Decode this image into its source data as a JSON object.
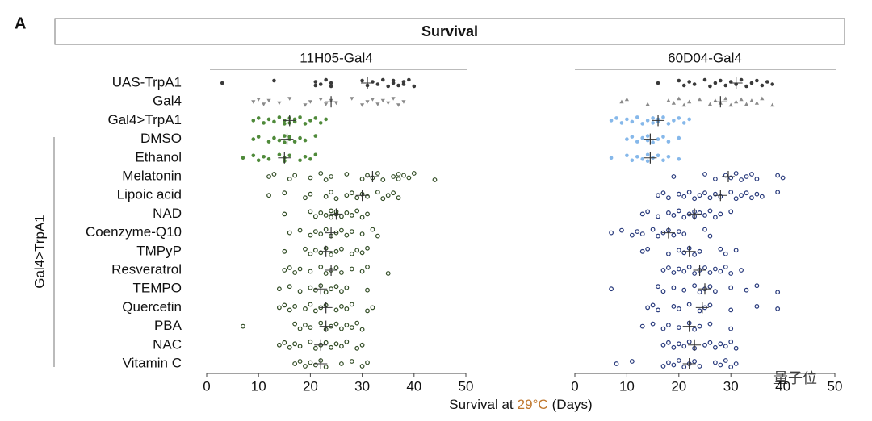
{
  "panel_letter": "A",
  "header": "Survival",
  "group_label": "Gal4>TrpA1",
  "row_labels": [
    "UAS-TrpA1",
    "Gal4",
    "Gal4>TrpA1",
    "DMSO",
    "Ethanol",
    "Melatonin",
    "Lipoic acid",
    "NAD",
    "Coenzyme-Q10",
    "TMPyP",
    "Resveratrol",
    "TEMPO",
    "Quercetin",
    "PBA",
    "NAC",
    "Vitamin C"
  ],
  "xlabel": {
    "before": "Survival at",
    "temperature": "29°C",
    "after": "(Days)",
    "temperature_color": "#c0782e"
  },
  "watermark": "量子位",
  "chart_data": [
    {
      "type": "strip",
      "title": "11H05-Gal4",
      "xlim": [
        0,
        50
      ],
      "xticks": [
        0,
        10,
        20,
        30,
        40,
        50
      ],
      "series": [
        {
          "color": "#3a3a3a",
          "marker": "filled",
          "mean": 31,
          "values": [
            3,
            13,
            21,
            21,
            22,
            23,
            24,
            24,
            30,
            31,
            32,
            33,
            34,
            35,
            36,
            36,
            37,
            38,
            38,
            39,
            40
          ]
        },
        {
          "color": "#8a8a8a",
          "marker": "triangle-down",
          "mean": 24,
          "values": [
            9,
            10,
            11,
            12,
            14,
            16,
            19,
            20,
            22,
            23,
            24,
            25,
            28,
            30,
            31,
            32,
            33,
            34,
            35,
            36,
            37,
            38
          ]
        },
        {
          "color": "#4f8a3a",
          "marker": "filled",
          "mean": 16,
          "values": [
            9,
            10,
            11,
            12,
            13,
            14,
            15,
            15,
            16,
            16,
            17,
            17,
            18,
            19,
            20,
            21,
            22,
            23
          ]
        },
        {
          "color": "#4f8a3a",
          "marker": "filled",
          "mean": 15.5,
          "values": [
            9,
            10,
            12,
            13,
            14,
            15,
            15,
            16,
            16,
            17,
            18,
            19,
            21
          ]
        },
        {
          "color": "#4f8a3a",
          "marker": "filled",
          "mean": 15,
          "values": [
            7,
            9,
            10,
            11,
            12,
            14,
            15,
            15,
            16,
            18,
            19,
            20,
            21
          ]
        },
        {
          "color": "#2f4a22",
          "marker": "open",
          "mean": 32,
          "values": [
            12,
            13,
            16,
            17,
            20,
            22,
            23,
            24,
            27,
            30,
            31,
            32,
            33,
            34,
            36,
            37,
            37,
            38,
            39,
            40,
            44
          ]
        },
        {
          "color": "#2f4a22",
          "marker": "open",
          "mean": 30,
          "values": [
            12,
            15,
            19,
            20,
            23,
            24,
            25,
            27,
            28,
            29,
            30,
            31,
            33,
            34,
            35,
            36,
            37
          ]
        },
        {
          "color": "#2f4a22",
          "marker": "open",
          "mean": 25,
          "values": [
            15,
            20,
            21,
            22,
            23,
            24,
            24,
            25,
            25,
            26,
            27,
            28,
            29,
            30,
            31
          ]
        },
        {
          "color": "#2f4a22",
          "marker": "open",
          "mean": 24,
          "values": [
            16,
            18,
            20,
            21,
            22,
            23,
            24,
            25,
            26,
            27,
            28,
            30,
            32,
            33
          ]
        },
        {
          "color": "#2f4a22",
          "marker": "open",
          "mean": 23,
          "values": [
            15,
            19,
            20,
            21,
            22,
            23,
            24,
            25,
            26,
            28,
            29,
            30,
            31
          ]
        },
        {
          "color": "#2f4a22",
          "marker": "open",
          "mean": 24,
          "values": [
            15,
            16,
            17,
            18,
            20,
            22,
            23,
            24,
            25,
            26,
            28,
            30,
            31,
            35
          ]
        },
        {
          "color": "#2f4a22",
          "marker": "open",
          "mean": 22,
          "values": [
            14,
            16,
            18,
            20,
            21,
            22,
            23,
            24,
            25,
            26,
            27,
            31
          ]
        },
        {
          "color": "#2f4a22",
          "marker": "open",
          "mean": 23,
          "values": [
            14,
            15,
            16,
            17,
            19,
            20,
            21,
            22,
            23,
            25,
            26,
            27,
            28,
            31,
            32
          ]
        },
        {
          "color": "#2f4a22",
          "marker": "open",
          "mean": 23,
          "values": [
            7,
            17,
            18,
            19,
            20,
            22,
            23,
            24,
            25,
            26,
            27,
            28,
            29,
            30
          ]
        },
        {
          "color": "#2f4a22",
          "marker": "open",
          "mean": 22,
          "values": [
            14,
            15,
            16,
            17,
            18,
            20,
            21,
            22,
            23,
            24,
            25,
            26,
            27,
            29,
            30
          ]
        },
        {
          "color": "#2f4a22",
          "marker": "open",
          "mean": 22,
          "values": [
            17,
            18,
            19,
            20,
            21,
            22,
            23,
            26,
            28,
            30,
            31
          ]
        }
      ]
    },
    {
      "type": "strip",
      "title": "60D04-Gal4",
      "xlim": [
        0,
        50
      ],
      "xticks": [
        0,
        10,
        20,
        30,
        40,
        50
      ],
      "series": [
        {
          "color": "#3a3a3a",
          "marker": "filled",
          "mean": 31,
          "values": [
            16,
            20,
            21,
            22,
            23,
            25,
            26,
            27,
            28,
            29,
            30,
            31,
            32,
            33,
            34,
            35,
            36,
            37,
            38
          ]
        },
        {
          "color": "#8a8a8a",
          "marker": "triangle-up",
          "mean": 28,
          "values": [
            9,
            10,
            14,
            18,
            19,
            20,
            21,
            22,
            24,
            26,
            27,
            28,
            29,
            30,
            31,
            32,
            33,
            34,
            35,
            36,
            38
          ]
        },
        {
          "color": "#86b8ea",
          "marker": "filled",
          "mean": 16,
          "values": [
            7,
            8,
            9,
            10,
            11,
            12,
            13,
            14,
            15,
            15,
            16,
            16,
            17,
            18,
            19,
            20,
            21,
            22
          ]
        },
        {
          "color": "#86b8ea",
          "marker": "filled",
          "mean": 14.5,
          "values": [
            10,
            11,
            12,
            13,
            14,
            14,
            15,
            16,
            17,
            18,
            20
          ]
        },
        {
          "color": "#86b8ea",
          "marker": "filled",
          "mean": 14.5,
          "values": [
            7,
            10,
            11,
            12,
            13,
            14,
            14,
            15,
            16,
            17,
            18,
            20
          ]
        },
        {
          "color": "#25377a",
          "marker": "open",
          "mean": 29.5,
          "values": [
            19,
            25,
            27,
            29,
            30,
            31,
            32,
            33,
            34,
            35,
            39,
            40
          ]
        },
        {
          "color": "#25377a",
          "marker": "open",
          "mean": 28,
          "values": [
            16,
            17,
            18,
            20,
            21,
            22,
            23,
            24,
            25,
            26,
            27,
            28,
            30,
            31,
            32,
            33,
            34,
            35,
            36,
            39
          ]
        },
        {
          "color": "#25377a",
          "marker": "open",
          "mean": 23,
          "values": [
            13,
            14,
            16,
            18,
            19,
            20,
            21,
            22,
            23,
            23,
            24,
            25,
            26,
            27,
            28,
            30
          ]
        },
        {
          "color": "#25377a",
          "marker": "open",
          "mean": 18,
          "values": [
            7,
            9,
            11,
            12,
            13,
            15,
            16,
            17,
            18,
            19,
            20,
            21,
            25,
            26
          ]
        },
        {
          "color": "#25377a",
          "marker": "open",
          "mean": 22,
          "values": [
            13,
            14,
            18,
            20,
            21,
            22,
            23,
            24,
            28,
            29,
            31
          ]
        },
        {
          "color": "#25377a",
          "marker": "open",
          "mean": 24,
          "values": [
            17,
            18,
            19,
            20,
            21,
            22,
            23,
            24,
            25,
            26,
            27,
            28,
            29,
            30,
            32
          ]
        },
        {
          "color": "#25377a",
          "marker": "open",
          "mean": 25,
          "values": [
            7,
            16,
            17,
            19,
            21,
            23,
            24,
            25,
            26,
            27,
            30,
            33,
            35,
            39
          ]
        },
        {
          "color": "#25377a",
          "marker": "open",
          "mean": 24.5,
          "values": [
            14,
            15,
            16,
            19,
            20,
            22,
            24,
            25,
            26,
            30,
            35,
            39
          ]
        },
        {
          "color": "#25377a",
          "marker": "open",
          "mean": 22,
          "values": [
            13,
            15,
            17,
            18,
            20,
            22,
            23,
            24,
            26,
            30
          ]
        },
        {
          "color": "#25377a",
          "marker": "open",
          "mean": 23,
          "values": [
            17,
            18,
            19,
            20,
            21,
            22,
            23,
            25,
            26,
            27,
            28,
            29,
            30,
            31
          ]
        },
        {
          "color": "#25377a",
          "marker": "open",
          "mean": 22,
          "values": [
            8,
            11,
            17,
            18,
            19,
            20,
            21,
            22,
            23,
            24,
            27,
            28,
            29,
            30,
            31
          ]
        }
      ]
    }
  ]
}
